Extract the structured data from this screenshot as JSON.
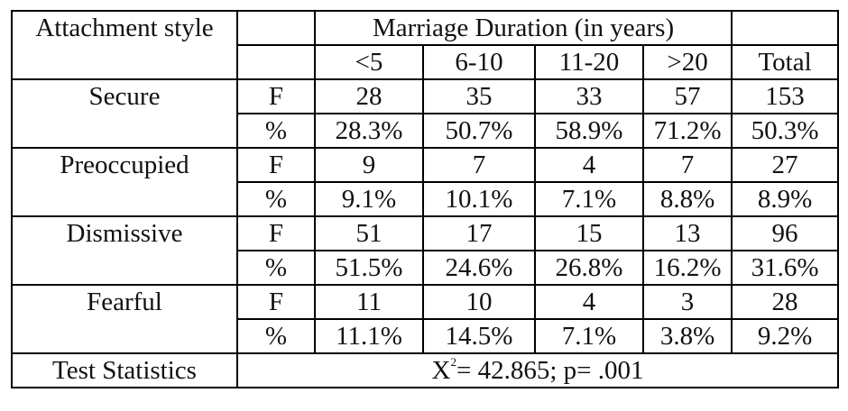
{
  "header": {
    "attachment_style": "Attachment style",
    "marriage_duration": "Marriage Duration (in years)",
    "columns": [
      "<5",
      "6-10",
      "11-20",
      ">20",
      "Total"
    ]
  },
  "rows": [
    {
      "style": "Secure",
      "f_label": "F",
      "f": [
        "28",
        "35",
        "33",
        "57",
        "153"
      ],
      "pct_label": "%",
      "pct": [
        "28.3%",
        "50.7%",
        "58.9%",
        "71.2%",
        "50.3%"
      ]
    },
    {
      "style": "Preoccupied",
      "f_label": "F",
      "f": [
        "9",
        "7",
        "4",
        "7",
        "27"
      ],
      "pct_label": "%",
      "pct": [
        "9.1%",
        "10.1%",
        "7.1%",
        "8.8%",
        "8.9%"
      ]
    },
    {
      "style": "Dismissive",
      "f_label": "F",
      "f": [
        "51",
        "17",
        "15",
        "13",
        "96"
      ],
      "pct_label": "%",
      "pct": [
        "51.5%",
        "24.6%",
        "26.8%",
        "16.2%",
        "31.6%"
      ]
    },
    {
      "style": "Fearful",
      "f_label": "F",
      "f": [
        "11",
        "10",
        "4",
        "3",
        "28"
      ],
      "pct_label": "%",
      "pct": [
        "11.1%",
        "14.5%",
        "7.1%",
        "3.8%",
        "9.2%"
      ]
    }
  ],
  "test_statistics": {
    "label": "Test Statistics",
    "symbol": "X",
    "superscript": "2",
    "result": "= 42.865; p= .001"
  }
}
